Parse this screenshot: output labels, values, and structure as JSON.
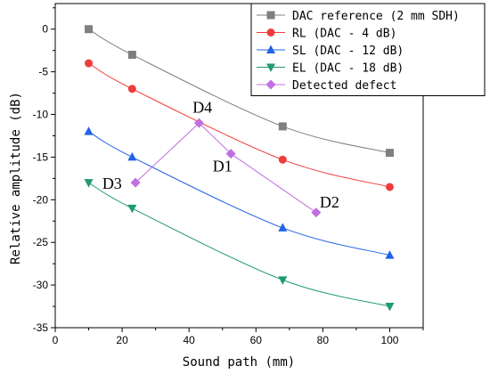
{
  "chart_data": {
    "type": "line",
    "xlabel": "Sound path (mm)",
    "ylabel": "Relative amplitude (dB)",
    "xlim": [
      0,
      110
    ],
    "ylim": [
      -35,
      3
    ],
    "xticks": [
      0,
      20,
      40,
      60,
      80,
      100
    ],
    "yticks": [
      0,
      -5,
      -10,
      -15,
      -20,
      -25,
      -30,
      -35
    ],
    "grid": false,
    "legend_position": "top-right",
    "series": [
      {
        "name": "DAC reference (2 mm SDH)",
        "color": "#7f7f7f",
        "marker": "square",
        "points": [
          [
            10,
            0
          ],
          [
            23,
            -3
          ],
          [
            68,
            -11.4
          ],
          [
            100,
            -14.5
          ]
        ]
      },
      {
        "name": "RL (DAC - 4 dB)",
        "color": "#f03c3c",
        "marker": "circle",
        "points": [
          [
            10,
            -4
          ],
          [
            23,
            -7
          ],
          [
            68,
            -15.3
          ],
          [
            100,
            -18.5
          ]
        ]
      },
      {
        "name": "SL (DAC - 12 dB)",
        "color": "#1f64e6",
        "marker": "triangle-up",
        "points": [
          [
            10,
            -12
          ],
          [
            23,
            -15
          ],
          [
            68,
            -23.3
          ],
          [
            100,
            -26.5
          ]
        ]
      },
      {
        "name": "EL (DAC - 18 dB)",
        "color": "#1f9a73",
        "marker": "triangle-down",
        "points": [
          [
            10,
            -18
          ],
          [
            23,
            -21
          ],
          [
            68,
            -29.4
          ],
          [
            100,
            -32.5
          ]
        ]
      },
      {
        "name": "Detected defect",
        "color": "#c070e0",
        "marker": "diamond",
        "points": [
          [
            24,
            -18
          ],
          [
            43,
            -11
          ],
          [
            52.5,
            -14.6
          ],
          [
            78,
            -21.5
          ]
        ]
      }
    ],
    "annotations": [
      {
        "text": "D3",
        "x": 17,
        "y": -18.7
      },
      {
        "text": "D4",
        "x": 44,
        "y": -9.8
      },
      {
        "text": "D1",
        "x": 50,
        "y": -16.7
      },
      {
        "text": "D2",
        "x": 82,
        "y": -20.9
      }
    ]
  }
}
